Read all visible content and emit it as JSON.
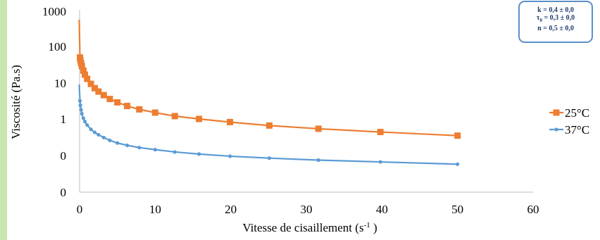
{
  "chart_data": {
    "type": "line",
    "xlabel": "Vitesse de cisaillement (s-1 )",
    "ylabel": "Viscosité (Pa.s)",
    "x_ticks": [
      "0",
      "10",
      "20",
      "30",
      "40",
      "50",
      "60"
    ],
    "y_ticks": [
      "0",
      "0",
      "1",
      "10",
      "100",
      "1000"
    ],
    "xlim": [
      0,
      60
    ],
    "yscale": "log",
    "legend_position": "right",
    "series": [
      {
        "name": "25°C",
        "color": "#ed7d31",
        "marker": "square",
        "x": [
          0.05,
          0.1,
          0.2,
          0.3,
          0.5,
          0.7,
          1.0,
          1.5,
          2.0,
          2.5,
          3.2,
          4.0,
          5.0,
          6.3,
          7.9,
          10.0,
          12.6,
          15.8,
          19.9,
          25.1,
          31.6,
          39.8,
          50.0
        ],
        "y": [
          50,
          42,
          35,
          29,
          22,
          17,
          13,
          9.5,
          7.2,
          5.8,
          4.6,
          3.6,
          2.9,
          2.3,
          1.85,
          1.5,
          1.2,
          1.0,
          0.82,
          0.66,
          0.54,
          0.44,
          0.35
        ]
      },
      {
        "name": "37°C",
        "color": "#5b9bd5",
        "marker": "circle",
        "x": [
          0.05,
          0.1,
          0.2,
          0.3,
          0.5,
          0.7,
          1.0,
          1.5,
          2.0,
          2.5,
          3.2,
          4.0,
          5.0,
          6.3,
          7.9,
          10.0,
          12.6,
          15.8,
          19.9,
          25.1,
          31.6,
          39.8,
          50.0
        ],
        "y": [
          3.2,
          2.4,
          1.8,
          1.4,
          1.05,
          0.85,
          0.68,
          0.52,
          0.43,
          0.37,
          0.31,
          0.26,
          0.22,
          0.19,
          0.165,
          0.145,
          0.125,
          0.11,
          0.096,
          0.085,
          0.075,
          0.067,
          0.058
        ]
      }
    ]
  },
  "params": {
    "line1": "k = 0,4 ± 0,0",
    "line2": "τ0 = 0,3 ± 0,0",
    "line3": "n = 0,5 ± 0,0"
  }
}
